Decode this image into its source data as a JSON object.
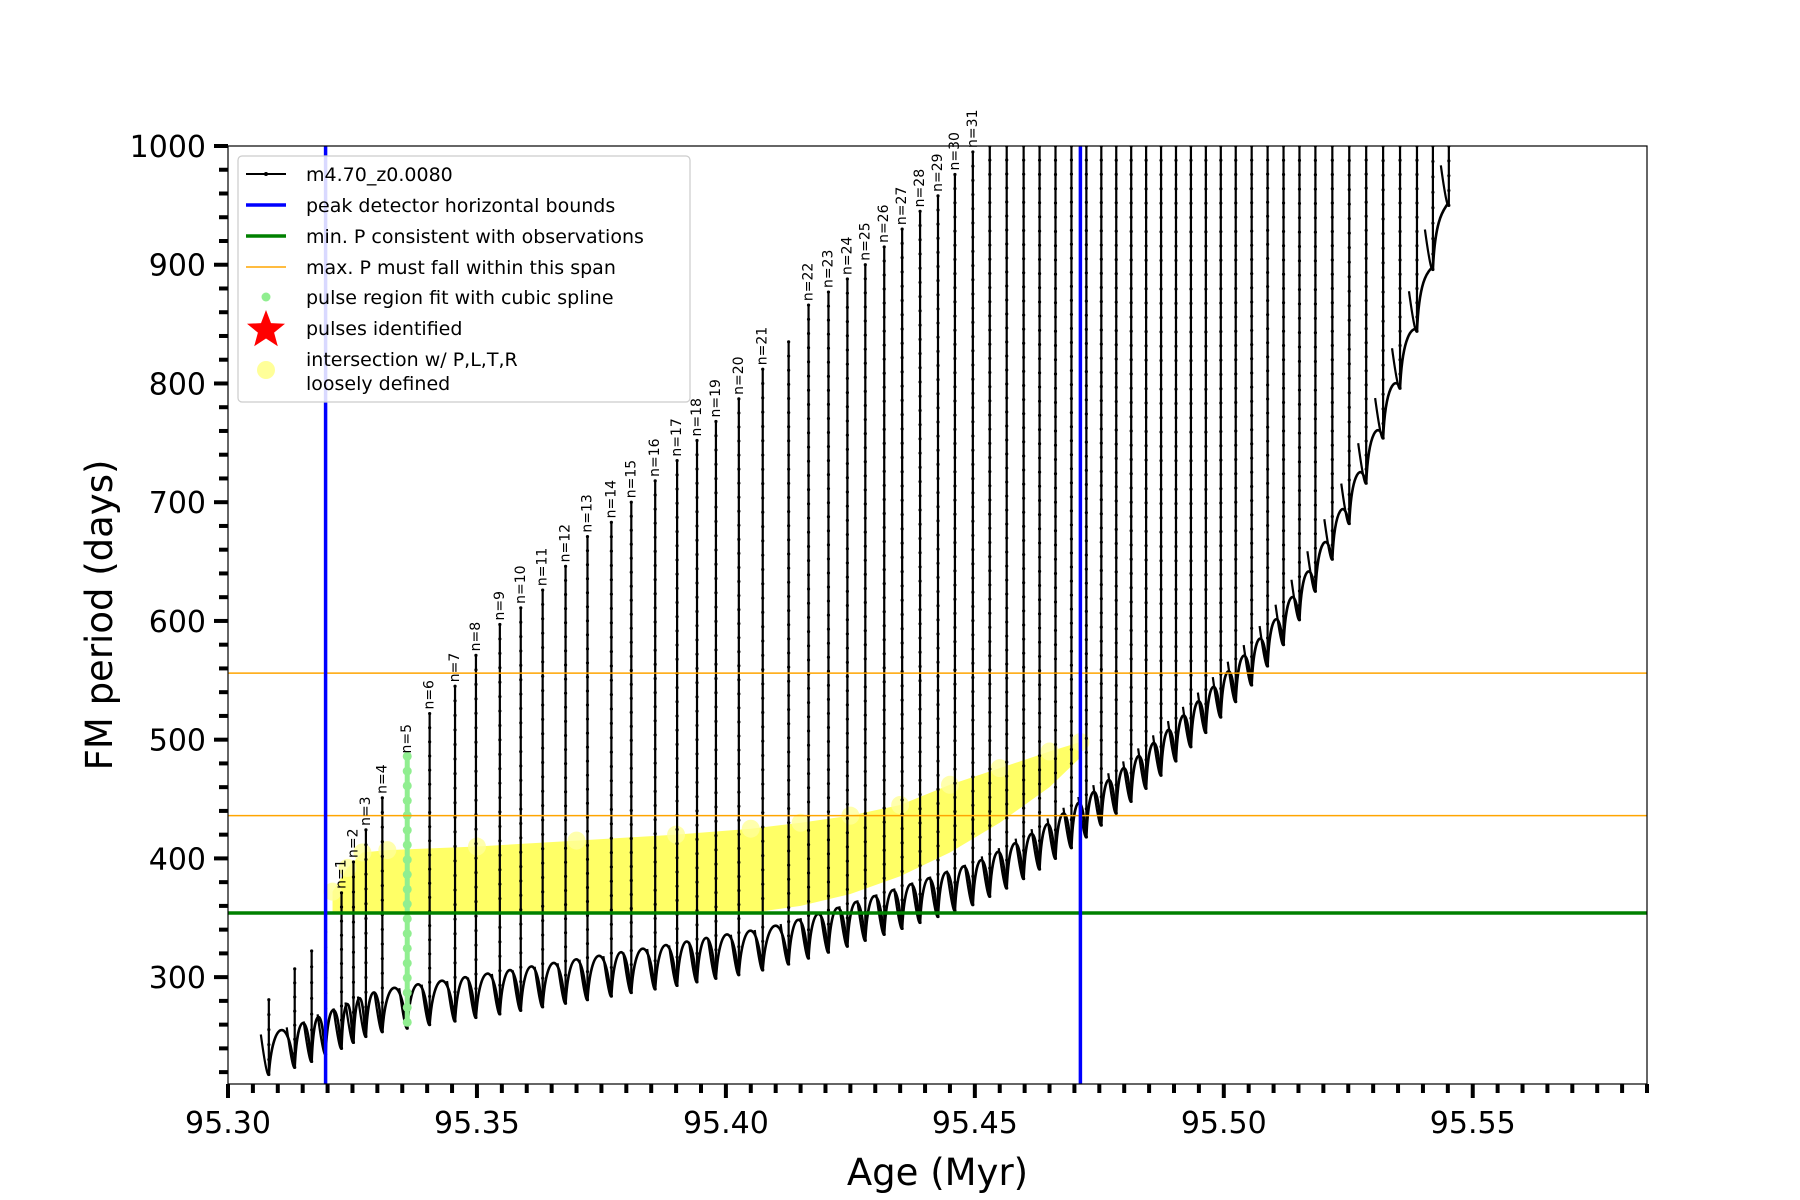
{
  "chart_data": {
    "type": "line",
    "xlabel": "Age (Myr)",
    "ylabel": "FM period (days)",
    "xlim": [
      95.3,
      95.585
    ],
    "ylim": [
      210,
      1000
    ],
    "x_ticks": [
      95.3,
      95.35,
      95.4,
      95.45,
      95.5,
      95.55
    ],
    "x_tick_labels": [
      "95.30",
      "95.35",
      "95.40",
      "95.45",
      "95.50",
      "95.55"
    ],
    "y_ticks": [
      300,
      400,
      500,
      600,
      700,
      800,
      900,
      1000
    ],
    "y_tick_labels": [
      "300",
      "400",
      "500",
      "600",
      "700",
      "800",
      "900",
      "1000"
    ],
    "grid": false,
    "legend_position": "top-left",
    "legend": [
      {
        "label": "m4.70_z0.0080",
        "kind": "line-dot",
        "color": "#000000"
      },
      {
        "label": "peak detector horizontal bounds",
        "kind": "line",
        "color": "#0000ff"
      },
      {
        "label": "min. P consistent with observations",
        "kind": "line",
        "color": "#008000"
      },
      {
        "label": "max. P must fall within this span",
        "kind": "thin-line",
        "color": "#ffa500"
      },
      {
        "label": "pulse region fit with cubic spline",
        "kind": "dot",
        "color": "#90ee90"
      },
      {
        "label": "pulses identified",
        "kind": "star",
        "color": "#ff0000"
      },
      {
        "label": "intersection w/ P,L,T,R\nloosely defined",
        "kind": "circle",
        "color": "#ffff99"
      }
    ],
    "vertical_lines": {
      "name": "peak detector horizontal bounds",
      "x": [
        95.3196,
        95.4712
      ],
      "color": "#0000ff"
    },
    "horizontal_lines": [
      {
        "name": "min. P consistent with observations",
        "y": 354,
        "color": "#008000"
      },
      {
        "name": "max. P must fall within this span",
        "y": 436,
        "color": "#ffa500"
      },
      {
        "name": "max. P must fall within this span",
        "y": 556,
        "color": "#ffa500"
      }
    ],
    "series": [
      {
        "name": "m4.70_z0.0080",
        "color": "#000000",
        "pulses": [
          {
            "x": 95.3082,
            "ymin": 218,
            "ymax": 281
          },
          {
            "x": 95.3134,
            "ymin": 224,
            "ymax": 307
          },
          {
            "x": 95.3168,
            "ymin": 229,
            "ymax": 322
          },
          {
            "x": 95.3196,
            "ymin": 235,
            "ymax": 338
          },
          {
            "x": 95.3228,
            "ymin": 240,
            "ymax": 371,
            "label": "n=1"
          },
          {
            "x": 95.3252,
            "ymin": 245,
            "ymax": 397,
            "label": "n=2"
          },
          {
            "x": 95.3277,
            "ymin": 250,
            "ymax": 424,
            "label": "n=3"
          },
          {
            "x": 95.331,
            "ymin": 254,
            "ymax": 451,
            "label": "n=4"
          },
          {
            "x": 95.336,
            "ymin": 257,
            "ymax": 485,
            "label": "n=5"
          },
          {
            "x": 95.3405,
            "ymin": 260,
            "ymax": 522,
            "label": "n=6"
          },
          {
            "x": 95.3456,
            "ymin": 263,
            "ymax": 545,
            "label": "n=7"
          },
          {
            "x": 95.3498,
            "ymin": 266,
            "ymax": 571,
            "label": "n=8"
          },
          {
            "x": 95.3546,
            "ymin": 269,
            "ymax": 597,
            "label": "n=9"
          },
          {
            "x": 95.3588,
            "ymin": 272,
            "ymax": 611,
            "label": "n=10"
          },
          {
            "x": 95.3632,
            "ymin": 275,
            "ymax": 626,
            "label": "n=11"
          },
          {
            "x": 95.3678,
            "ymin": 278,
            "ymax": 646,
            "label": "n=12"
          },
          {
            "x": 95.3722,
            "ymin": 281,
            "ymax": 671,
            "label": "n=13"
          },
          {
            "x": 95.377,
            "ymin": 284,
            "ymax": 683,
            "label": "n=14"
          },
          {
            "x": 95.381,
            "ymin": 287,
            "ymax": 700,
            "label": "n=15"
          },
          {
            "x": 95.3858,
            "ymin": 290,
            "ymax": 718,
            "label": "n=16"
          },
          {
            "x": 95.3902,
            "ymin": 293,
            "ymax": 735,
            "label": "n=17"
          },
          {
            "x": 95.3942,
            "ymin": 296,
            "ymax": 752,
            "label": "n=18"
          },
          {
            "x": 95.398,
            "ymin": 299,
            "ymax": 768,
            "label": "n=19"
          },
          {
            "x": 95.4026,
            "ymin": 302,
            "ymax": 787,
            "label": "n=20"
          },
          {
            "x": 95.4074,
            "ymin": 306,
            "ymax": 812,
            "label": "n=21"
          },
          {
            "x": 95.4126,
            "ymin": 311,
            "ymax": 835
          },
          {
            "x": 95.4166,
            "ymin": 316,
            "ymax": 866,
            "label": "n=22"
          },
          {
            "x": 95.4206,
            "ymin": 321,
            "ymax": 877,
            "label": "n=23"
          },
          {
            "x": 95.4244,
            "ymin": 326,
            "ymax": 888,
            "label": "n=24"
          },
          {
            "x": 95.428,
            "ymin": 331,
            "ymax": 900,
            "label": "n=25"
          },
          {
            "x": 95.4318,
            "ymin": 336,
            "ymax": 915,
            "label": "n=26"
          },
          {
            "x": 95.4354,
            "ymin": 341,
            "ymax": 930,
            "label": "n=27"
          },
          {
            "x": 95.439,
            "ymin": 346,
            "ymax": 945,
            "label": "n=28"
          },
          {
            "x": 95.4426,
            "ymin": 351,
            "ymax": 958,
            "label": "n=29"
          },
          {
            "x": 95.446,
            "ymin": 356,
            "ymax": 976,
            "label": "n=30"
          },
          {
            "x": 95.4496,
            "ymin": 361,
            "ymax": 995,
            "label": "n=31"
          },
          {
            "x": 95.453,
            "ymin": 368,
            "ymax": 1000
          },
          {
            "x": 95.4564,
            "ymin": 375,
            "ymax": 1000
          },
          {
            "x": 95.4598,
            "ymin": 383,
            "ymax": 1000
          },
          {
            "x": 95.463,
            "ymin": 391,
            "ymax": 1000
          },
          {
            "x": 95.4662,
            "ymin": 400,
            "ymax": 1000
          },
          {
            "x": 95.4694,
            "ymin": 409,
            "ymax": 1000
          },
          {
            "x": 95.4724,
            "ymin": 418,
            "ymax": 1000
          },
          {
            "x": 95.4754,
            "ymin": 428,
            "ymax": 1000
          },
          {
            "x": 95.4784,
            "ymin": 438,
            "ymax": 1000
          },
          {
            "x": 95.4814,
            "ymin": 448,
            "ymax": 1000
          },
          {
            "x": 95.4844,
            "ymin": 459,
            "ymax": 1000
          },
          {
            "x": 95.4874,
            "ymin": 470,
            "ymax": 1000
          },
          {
            "x": 95.4904,
            "ymin": 482,
            "ymax": 1000
          },
          {
            "x": 95.4934,
            "ymin": 494,
            "ymax": 1000
          },
          {
            "x": 95.4964,
            "ymin": 506,
            "ymax": 1000
          },
          {
            "x": 95.4994,
            "ymin": 519,
            "ymax": 1000
          },
          {
            "x": 95.5024,
            "ymin": 532,
            "ymax": 1000
          },
          {
            "x": 95.5056,
            "ymin": 546,
            "ymax": 1000
          },
          {
            "x": 95.5088,
            "ymin": 562,
            "ymax": 1000
          },
          {
            "x": 95.512,
            "ymin": 580,
            "ymax": 1000
          },
          {
            "x": 95.5152,
            "ymin": 601,
            "ymax": 1000
          },
          {
            "x": 95.5184,
            "ymin": 625,
            "ymax": 1000
          },
          {
            "x": 95.5218,
            "ymin": 652,
            "ymax": 1000
          },
          {
            "x": 95.5252,
            "ymin": 682,
            "ymax": 1000
          },
          {
            "x": 95.5286,
            "ymin": 716,
            "ymax": 1000
          },
          {
            "x": 95.532,
            "ymin": 754,
            "ymax": 1000
          },
          {
            "x": 95.5354,
            "ymin": 796,
            "ymax": 1000
          },
          {
            "x": 95.5388,
            "ymin": 844,
            "ymax": 1000
          },
          {
            "x": 95.542,
            "ymin": 896,
            "ymax": 1000
          },
          {
            "x": 95.5452,
            "ymin": 950,
            "ymax": 1000
          }
        ]
      },
      {
        "name": "pulse region fit with cubic spline",
        "color": "#90ee90",
        "x": 95.336,
        "ymin": 262,
        "ymax": 486
      },
      {
        "name": "intersection w/ P,L,T,R\nloosely defined",
        "color": "#ffff00",
        "band": [
          {
            "x": 95.321,
            "ymin": 354,
            "ymax": 372
          },
          {
            "x": 95.324,
            "ymin": 354,
            "ymax": 392
          },
          {
            "x": 95.327,
            "ymin": 354,
            "ymax": 405
          },
          {
            "x": 95.332,
            "ymin": 354,
            "ymax": 407
          },
          {
            "x": 95.35,
            "ymin": 354,
            "ymax": 410
          },
          {
            "x": 95.37,
            "ymin": 354,
            "ymax": 415
          },
          {
            "x": 95.39,
            "ymin": 354,
            "ymax": 420
          },
          {
            "x": 95.405,
            "ymin": 354,
            "ymax": 425
          },
          {
            "x": 95.415,
            "ymin": 360,
            "ymax": 430
          },
          {
            "x": 95.425,
            "ymin": 370,
            "ymax": 436
          },
          {
            "x": 95.435,
            "ymin": 385,
            "ymax": 445
          },
          {
            "x": 95.445,
            "ymin": 405,
            "ymax": 462
          },
          {
            "x": 95.455,
            "ymin": 430,
            "ymax": 476
          },
          {
            "x": 95.465,
            "ymin": 460,
            "ymax": 490
          },
          {
            "x": 95.4712,
            "ymin": 485,
            "ymax": 498
          }
        ]
      }
    ]
  }
}
